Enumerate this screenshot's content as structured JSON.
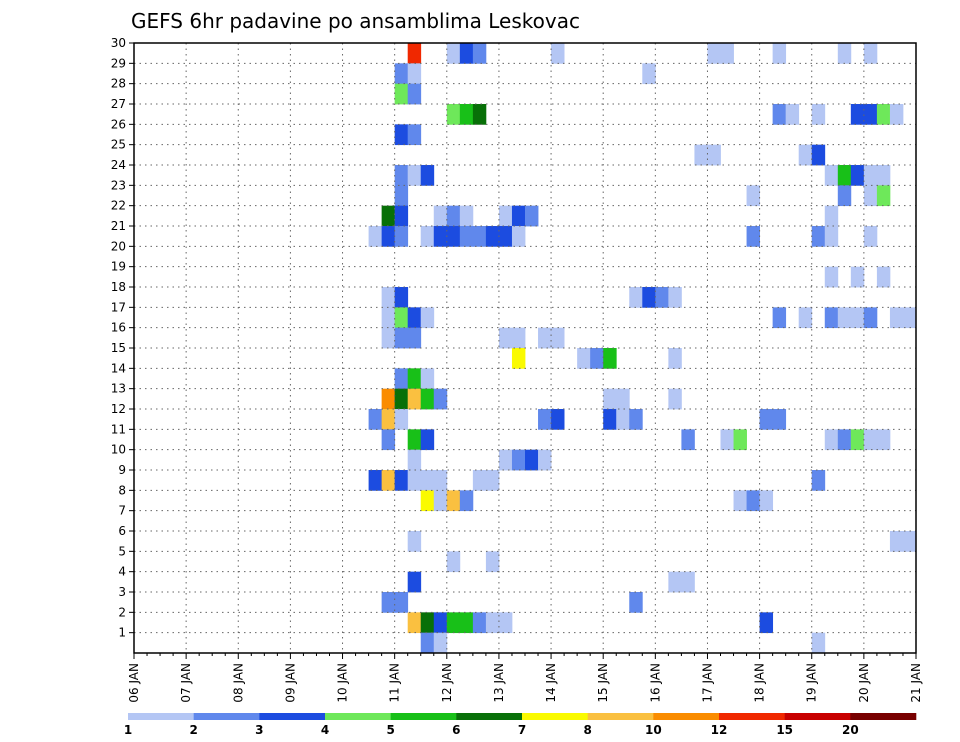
{
  "chart_data": {
    "type": "heatmap",
    "title": "GEFS 6hr padavine po ansamblima Leskovac",
    "x_tick_labels": [
      "06 JAN",
      "07 JAN",
      "08 JAN",
      "09 JAN",
      "10 JAN",
      "11 JAN",
      "12 JAN",
      "13 JAN",
      "14 JAN",
      "15 JAN",
      "16 JAN",
      "17 JAN",
      "18 JAN",
      "19 JAN",
      "20 JAN",
      "21 JAN"
    ],
    "x_range_steps": [
      0,
      60
    ],
    "x_step_hours": 6,
    "y_tick_labels": [
      "1",
      "2",
      "3",
      "4",
      "5",
      "6",
      "7",
      "8",
      "9",
      "10",
      "11",
      "12",
      "13",
      "14",
      "15",
      "16",
      "17",
      "18",
      "19",
      "20",
      "21",
      "22",
      "23",
      "24",
      "25",
      "26",
      "27",
      "28",
      "29",
      "30"
    ],
    "y_range": [
      0,
      30
    ],
    "grid": true,
    "colorbar": {
      "labels": [
        "1",
        "2",
        "3",
        "4",
        "5",
        "6",
        "7",
        "8",
        "10",
        "12",
        "15",
        "20"
      ],
      "colors": [
        "#b4c6f4",
        "#6088ec",
        "#1c4ce0",
        "#6ee85a",
        "#18c018",
        "#087008",
        "#fafa00",
        "#fac040",
        "#fa8c00",
        "#f02800",
        "#c80000",
        "#780000"
      ],
      "placement": "bottom"
    },
    "cells": [
      [
        21,
        30,
        "#f02800"
      ],
      [
        24,
        30,
        "#b4c6f4"
      ],
      [
        25,
        30,
        "#1c4ce0"
      ],
      [
        26,
        30,
        "#6088ec"
      ],
      [
        32,
        30,
        "#b4c6f4"
      ],
      [
        44,
        30,
        "#b4c6f4"
      ],
      [
        45,
        30,
        "#b4c6f4"
      ],
      [
        49,
        30,
        "#b4c6f4"
      ],
      [
        54,
        30,
        "#b4c6f4"
      ],
      [
        56,
        30,
        "#b4c6f4"
      ],
      [
        20,
        29,
        "#6088ec"
      ],
      [
        21,
        29,
        "#b4c6f4"
      ],
      [
        39,
        29,
        "#b4c6f4"
      ],
      [
        20,
        28,
        "#6ee85a"
      ],
      [
        21,
        28,
        "#6088ec"
      ],
      [
        24,
        27,
        "#6ee85a"
      ],
      [
        25,
        27,
        "#18c018"
      ],
      [
        26,
        27,
        "#087008"
      ],
      [
        49,
        27,
        "#6088ec"
      ],
      [
        50,
        27,
        "#b4c6f4"
      ],
      [
        52,
        27,
        "#b4c6f4"
      ],
      [
        55,
        27,
        "#1c4ce0"
      ],
      [
        56,
        27,
        "#1c4ce0"
      ],
      [
        57,
        27,
        "#6ee85a"
      ],
      [
        58,
        27,
        "#b4c6f4"
      ],
      [
        20,
        26,
        "#1c4ce0"
      ],
      [
        21,
        26,
        "#6088ec"
      ],
      [
        43,
        25,
        "#b4c6f4"
      ],
      [
        44,
        25,
        "#b4c6f4"
      ],
      [
        51,
        25,
        "#b4c6f4"
      ],
      [
        52,
        25,
        "#1c4ce0"
      ],
      [
        20,
        24,
        "#6088ec"
      ],
      [
        21,
        24,
        "#b4c6f4"
      ],
      [
        22,
        24,
        "#1c4ce0"
      ],
      [
        53,
        24,
        "#b4c6f4"
      ],
      [
        54,
        24,
        "#18c018"
      ],
      [
        55,
        24,
        "#1c4ce0"
      ],
      [
        56,
        24,
        "#b4c6f4"
      ],
      [
        57,
        24,
        "#b4c6f4"
      ],
      [
        20,
        23,
        "#6088ec"
      ],
      [
        47,
        23,
        "#b4c6f4"
      ],
      [
        54,
        23,
        "#6088ec"
      ],
      [
        56,
        23,
        "#b4c6f4"
      ],
      [
        57,
        23,
        "#6ee85a"
      ],
      [
        19,
        22,
        "#087008"
      ],
      [
        20,
        22,
        "#1c4ce0"
      ],
      [
        23,
        22,
        "#b4c6f4"
      ],
      [
        24,
        22,
        "#6088ec"
      ],
      [
        25,
        22,
        "#b4c6f4"
      ],
      [
        28,
        22,
        "#b4c6f4"
      ],
      [
        29,
        22,
        "#1c4ce0"
      ],
      [
        30,
        22,
        "#6088ec"
      ],
      [
        53,
        22,
        "#b4c6f4"
      ],
      [
        18,
        21,
        "#b4c6f4"
      ],
      [
        19,
        21,
        "#1c4ce0"
      ],
      [
        20,
        21,
        "#6088ec"
      ],
      [
        22,
        21,
        "#b4c6f4"
      ],
      [
        23,
        21,
        "#1c4ce0"
      ],
      [
        24,
        21,
        "#1c4ce0"
      ],
      [
        25,
        21,
        "#6088ec"
      ],
      [
        26,
        21,
        "#6088ec"
      ],
      [
        27,
        21,
        "#1c4ce0"
      ],
      [
        28,
        21,
        "#1c4ce0"
      ],
      [
        29,
        21,
        "#b4c6f4"
      ],
      [
        47,
        21,
        "#6088ec"
      ],
      [
        52,
        21,
        "#6088ec"
      ],
      [
        53,
        21,
        "#b4c6f4"
      ],
      [
        56,
        21,
        "#b4c6f4"
      ],
      [
        53,
        19,
        "#b4c6f4"
      ],
      [
        55,
        19,
        "#b4c6f4"
      ],
      [
        57,
        19,
        "#b4c6f4"
      ],
      [
        19,
        18,
        "#b4c6f4"
      ],
      [
        20,
        18,
        "#1c4ce0"
      ],
      [
        38,
        18,
        "#b4c6f4"
      ],
      [
        39,
        18,
        "#1c4ce0"
      ],
      [
        40,
        18,
        "#6088ec"
      ],
      [
        41,
        18,
        "#b4c6f4"
      ],
      [
        19,
        17,
        "#b4c6f4"
      ],
      [
        20,
        17,
        "#6ee85a"
      ],
      [
        21,
        17,
        "#1c4ce0"
      ],
      [
        22,
        17,
        "#b4c6f4"
      ],
      [
        49,
        17,
        "#6088ec"
      ],
      [
        51,
        17,
        "#b4c6f4"
      ],
      [
        53,
        17,
        "#6088ec"
      ],
      [
        54,
        17,
        "#b4c6f4"
      ],
      [
        55,
        17,
        "#b4c6f4"
      ],
      [
        56,
        17,
        "#6088ec"
      ],
      [
        58,
        17,
        "#b4c6f4"
      ],
      [
        59,
        17,
        "#b4c6f4"
      ],
      [
        19,
        16,
        "#b4c6f4"
      ],
      [
        20,
        16,
        "#6088ec"
      ],
      [
        21,
        16,
        "#6088ec"
      ],
      [
        28,
        16,
        "#b4c6f4"
      ],
      [
        29,
        16,
        "#b4c6f4"
      ],
      [
        31,
        16,
        "#b4c6f4"
      ],
      [
        32,
        16,
        "#b4c6f4"
      ],
      [
        29,
        15,
        "#fafa00"
      ],
      [
        34,
        15,
        "#b4c6f4"
      ],
      [
        35,
        15,
        "#6088ec"
      ],
      [
        36,
        15,
        "#18c018"
      ],
      [
        41,
        15,
        "#b4c6f4"
      ],
      [
        20,
        14,
        "#6088ec"
      ],
      [
        21,
        14,
        "#18c018"
      ],
      [
        22,
        14,
        "#b4c6f4"
      ],
      [
        19,
        13,
        "#fa8c00"
      ],
      [
        20,
        13,
        "#087008"
      ],
      [
        21,
        13,
        "#fac040"
      ],
      [
        22,
        13,
        "#18c018"
      ],
      [
        23,
        13,
        "#6088ec"
      ],
      [
        36,
        13,
        "#b4c6f4"
      ],
      [
        37,
        13,
        "#b4c6f4"
      ],
      [
        41,
        13,
        "#b4c6f4"
      ],
      [
        18,
        12,
        "#6088ec"
      ],
      [
        19,
        12,
        "#fac040"
      ],
      [
        20,
        12,
        "#b4c6f4"
      ],
      [
        31,
        12,
        "#6088ec"
      ],
      [
        32,
        12,
        "#1c4ce0"
      ],
      [
        36,
        12,
        "#1c4ce0"
      ],
      [
        37,
        12,
        "#b4c6f4"
      ],
      [
        38,
        12,
        "#6088ec"
      ],
      [
        48,
        12,
        "#6088ec"
      ],
      [
        49,
        12,
        "#6088ec"
      ],
      [
        19,
        11,
        "#6088ec"
      ],
      [
        21,
        11,
        "#18c018"
      ],
      [
        22,
        11,
        "#1c4ce0"
      ],
      [
        42,
        11,
        "#6088ec"
      ],
      [
        45,
        11,
        "#b4c6f4"
      ],
      [
        46,
        11,
        "#6ee85a"
      ],
      [
        53,
        11,
        "#b4c6f4"
      ],
      [
        54,
        11,
        "#6088ec"
      ],
      [
        55,
        11,
        "#6ee85a"
      ],
      [
        56,
        11,
        "#b4c6f4"
      ],
      [
        57,
        11,
        "#b4c6f4"
      ],
      [
        21,
        10,
        "#b4c6f4"
      ],
      [
        28,
        10,
        "#b4c6f4"
      ],
      [
        29,
        10,
        "#6088ec"
      ],
      [
        30,
        10,
        "#1c4ce0"
      ],
      [
        31,
        10,
        "#b4c6f4"
      ],
      [
        18,
        9,
        "#1c4ce0"
      ],
      [
        19,
        9,
        "#fac040"
      ],
      [
        20,
        9,
        "#1c4ce0"
      ],
      [
        21,
        9,
        "#b4c6f4"
      ],
      [
        22,
        9,
        "#b4c6f4"
      ],
      [
        23,
        9,
        "#b4c6f4"
      ],
      [
        26,
        9,
        "#b4c6f4"
      ],
      [
        27,
        9,
        "#b4c6f4"
      ],
      [
        52,
        9,
        "#6088ec"
      ],
      [
        22,
        8,
        "#fafa00"
      ],
      [
        23,
        8,
        "#b4c6f4"
      ],
      [
        24,
        8,
        "#fac040"
      ],
      [
        25,
        8,
        "#6088ec"
      ],
      [
        46,
        8,
        "#b4c6f4"
      ],
      [
        47,
        8,
        "#6088ec"
      ],
      [
        48,
        8,
        "#b4c6f4"
      ],
      [
        21,
        6,
        "#b4c6f4"
      ],
      [
        58,
        6,
        "#b4c6f4"
      ],
      [
        59,
        6,
        "#b4c6f4"
      ],
      [
        24,
        5,
        "#b4c6f4"
      ],
      [
        27,
        5,
        "#b4c6f4"
      ],
      [
        21,
        4,
        "#1c4ce0"
      ],
      [
        41,
        4,
        "#b4c6f4"
      ],
      [
        42,
        4,
        "#b4c6f4"
      ],
      [
        19,
        3,
        "#6088ec"
      ],
      [
        20,
        3,
        "#6088ec"
      ],
      [
        38,
        3,
        "#6088ec"
      ],
      [
        21,
        2,
        "#fac040"
      ],
      [
        22,
        2,
        "#087008"
      ],
      [
        23,
        2,
        "#1c4ce0"
      ],
      [
        24,
        2,
        "#18c018"
      ],
      [
        25,
        2,
        "#18c018"
      ],
      [
        26,
        2,
        "#6088ec"
      ],
      [
        27,
        2,
        "#b4c6f4"
      ],
      [
        28,
        2,
        "#b4c6f4"
      ],
      [
        48,
        2,
        "#1c4ce0"
      ],
      [
        22,
        1,
        "#6088ec"
      ],
      [
        23,
        1,
        "#b4c6f4"
      ],
      [
        52,
        1,
        "#b4c6f4"
      ]
    ]
  }
}
